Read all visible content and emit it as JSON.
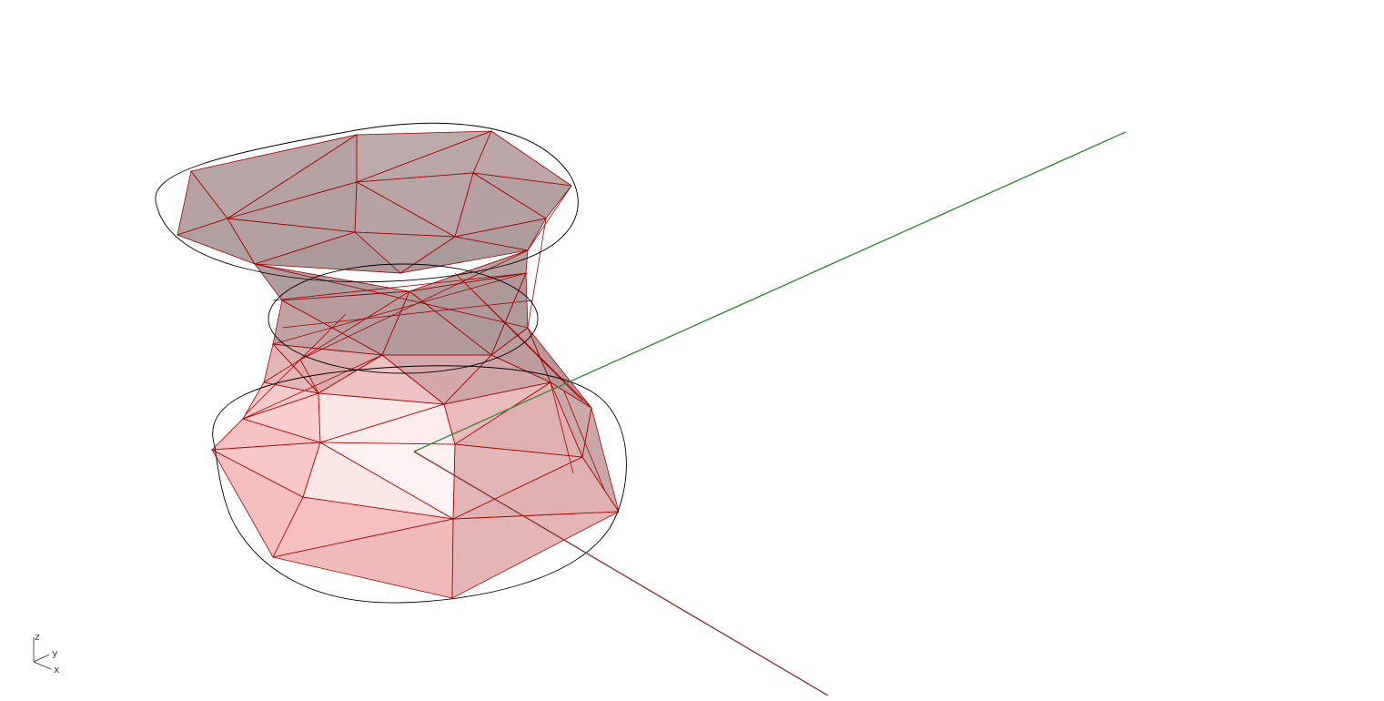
{
  "viewport": {
    "background": "#ffffff"
  },
  "axes": {
    "x_axis_color": "#8b3a3a",
    "y_axis_color": "#3a8a3a"
  },
  "mesh": {
    "edge_color": "#a00000",
    "outline_color": "#000000",
    "top_face_color": "#9a8080",
    "bottom_face_color": "#f09090"
  },
  "gizmo": {
    "z_label": "z",
    "y_label": "y",
    "x_label": "x"
  }
}
